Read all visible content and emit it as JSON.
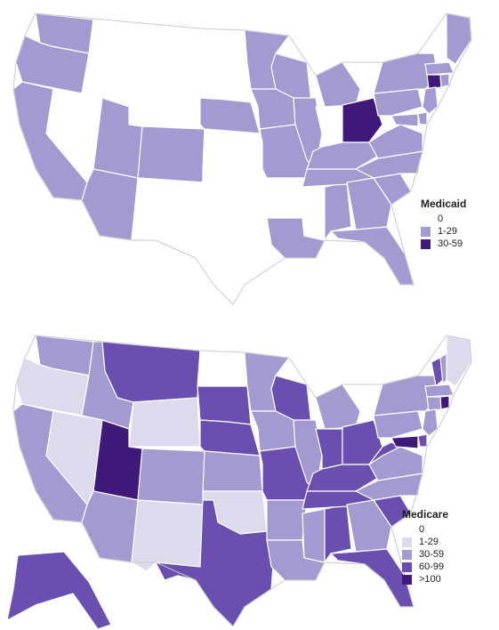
{
  "maps": [
    {
      "id": "medicaid",
      "legend": {
        "title": "Medicaid",
        "bins": [
          {
            "label": "0",
            "color": "#ffffff"
          },
          {
            "label": "1-29",
            "color": "#a29ad0"
          },
          {
            "label": "30-59",
            "color": "#3f1a7a"
          }
        ]
      },
      "state_bins": {
        "WA": 1,
        "OR": 1,
        "CA": 1,
        "NV": 0,
        "ID": 0,
        "MT": 0,
        "WY": 0,
        "UT": 1,
        "AZ": 1,
        "CO": 1,
        "NM": 0,
        "ND": 0,
        "SD": 0,
        "NE": 1,
        "KS": 0,
        "OK": 0,
        "TX": 0,
        "MN": 1,
        "IA": 1,
        "MO": 1,
        "AR": 0,
        "LA": 1,
        "WI": 1,
        "IL": 1,
        "MS": 0,
        "AL": 1,
        "MI": 1,
        "IN": 0,
        "OH": 2,
        "KY": 1,
        "TN": 1,
        "GA": 1,
        "FL": 1,
        "SC": 1,
        "NC": 1,
        "VA": 1,
        "WV": 0,
        "PA": 1,
        "NY": 1,
        "ME": 1,
        "VT": 0,
        "NH": 0,
        "MA": 1,
        "CT": 2,
        "RI": 1,
        "NJ": 1,
        "DE": 1,
        "MD": 1,
        "AK": 0,
        "HI": 0
      }
    },
    {
      "id": "medicare",
      "legend": {
        "title": "Medicare",
        "bins": [
          {
            "label": "0",
            "color": "#ffffff"
          },
          {
            "label": "1-29",
            "color": "#dcdaec"
          },
          {
            "label": "30-59",
            "color": "#a29ad0"
          },
          {
            "label": "60-99",
            "color": "#6a4fb0"
          },
          {
            "label": ">100",
            "color": "#3f1a7a"
          }
        ]
      },
      "state_bins": {
        "WA": 2,
        "OR": 1,
        "CA": 2,
        "NV": 1,
        "ID": 2,
        "MT": 3,
        "WY": 1,
        "UT": 4,
        "AZ": 2,
        "CO": 2,
        "NM": 1,
        "ND": 0,
        "SD": 3,
        "NE": 3,
        "KS": 2,
        "OK": 1,
        "TX": 3,
        "MN": 2,
        "IA": 2,
        "MO": 3,
        "AR": 2,
        "LA": 2,
        "WI": 3,
        "IL": 2,
        "MS": 2,
        "AL": 3,
        "MI": 2,
        "IN": 3,
        "OH": 3,
        "KY": 3,
        "TN": 3,
        "GA": 2,
        "FL": 3,
        "SC": 3,
        "NC": 2,
        "VA": 2,
        "WV": 3,
        "PA": 2,
        "NY": 2,
        "ME": 1,
        "VT": 3,
        "NH": 2,
        "MA": 2,
        "CT": 2,
        "RI": 4,
        "NJ": 2,
        "DE": 3,
        "MD": 4,
        "AK": 3,
        "HI": 0
      }
    }
  ]
}
